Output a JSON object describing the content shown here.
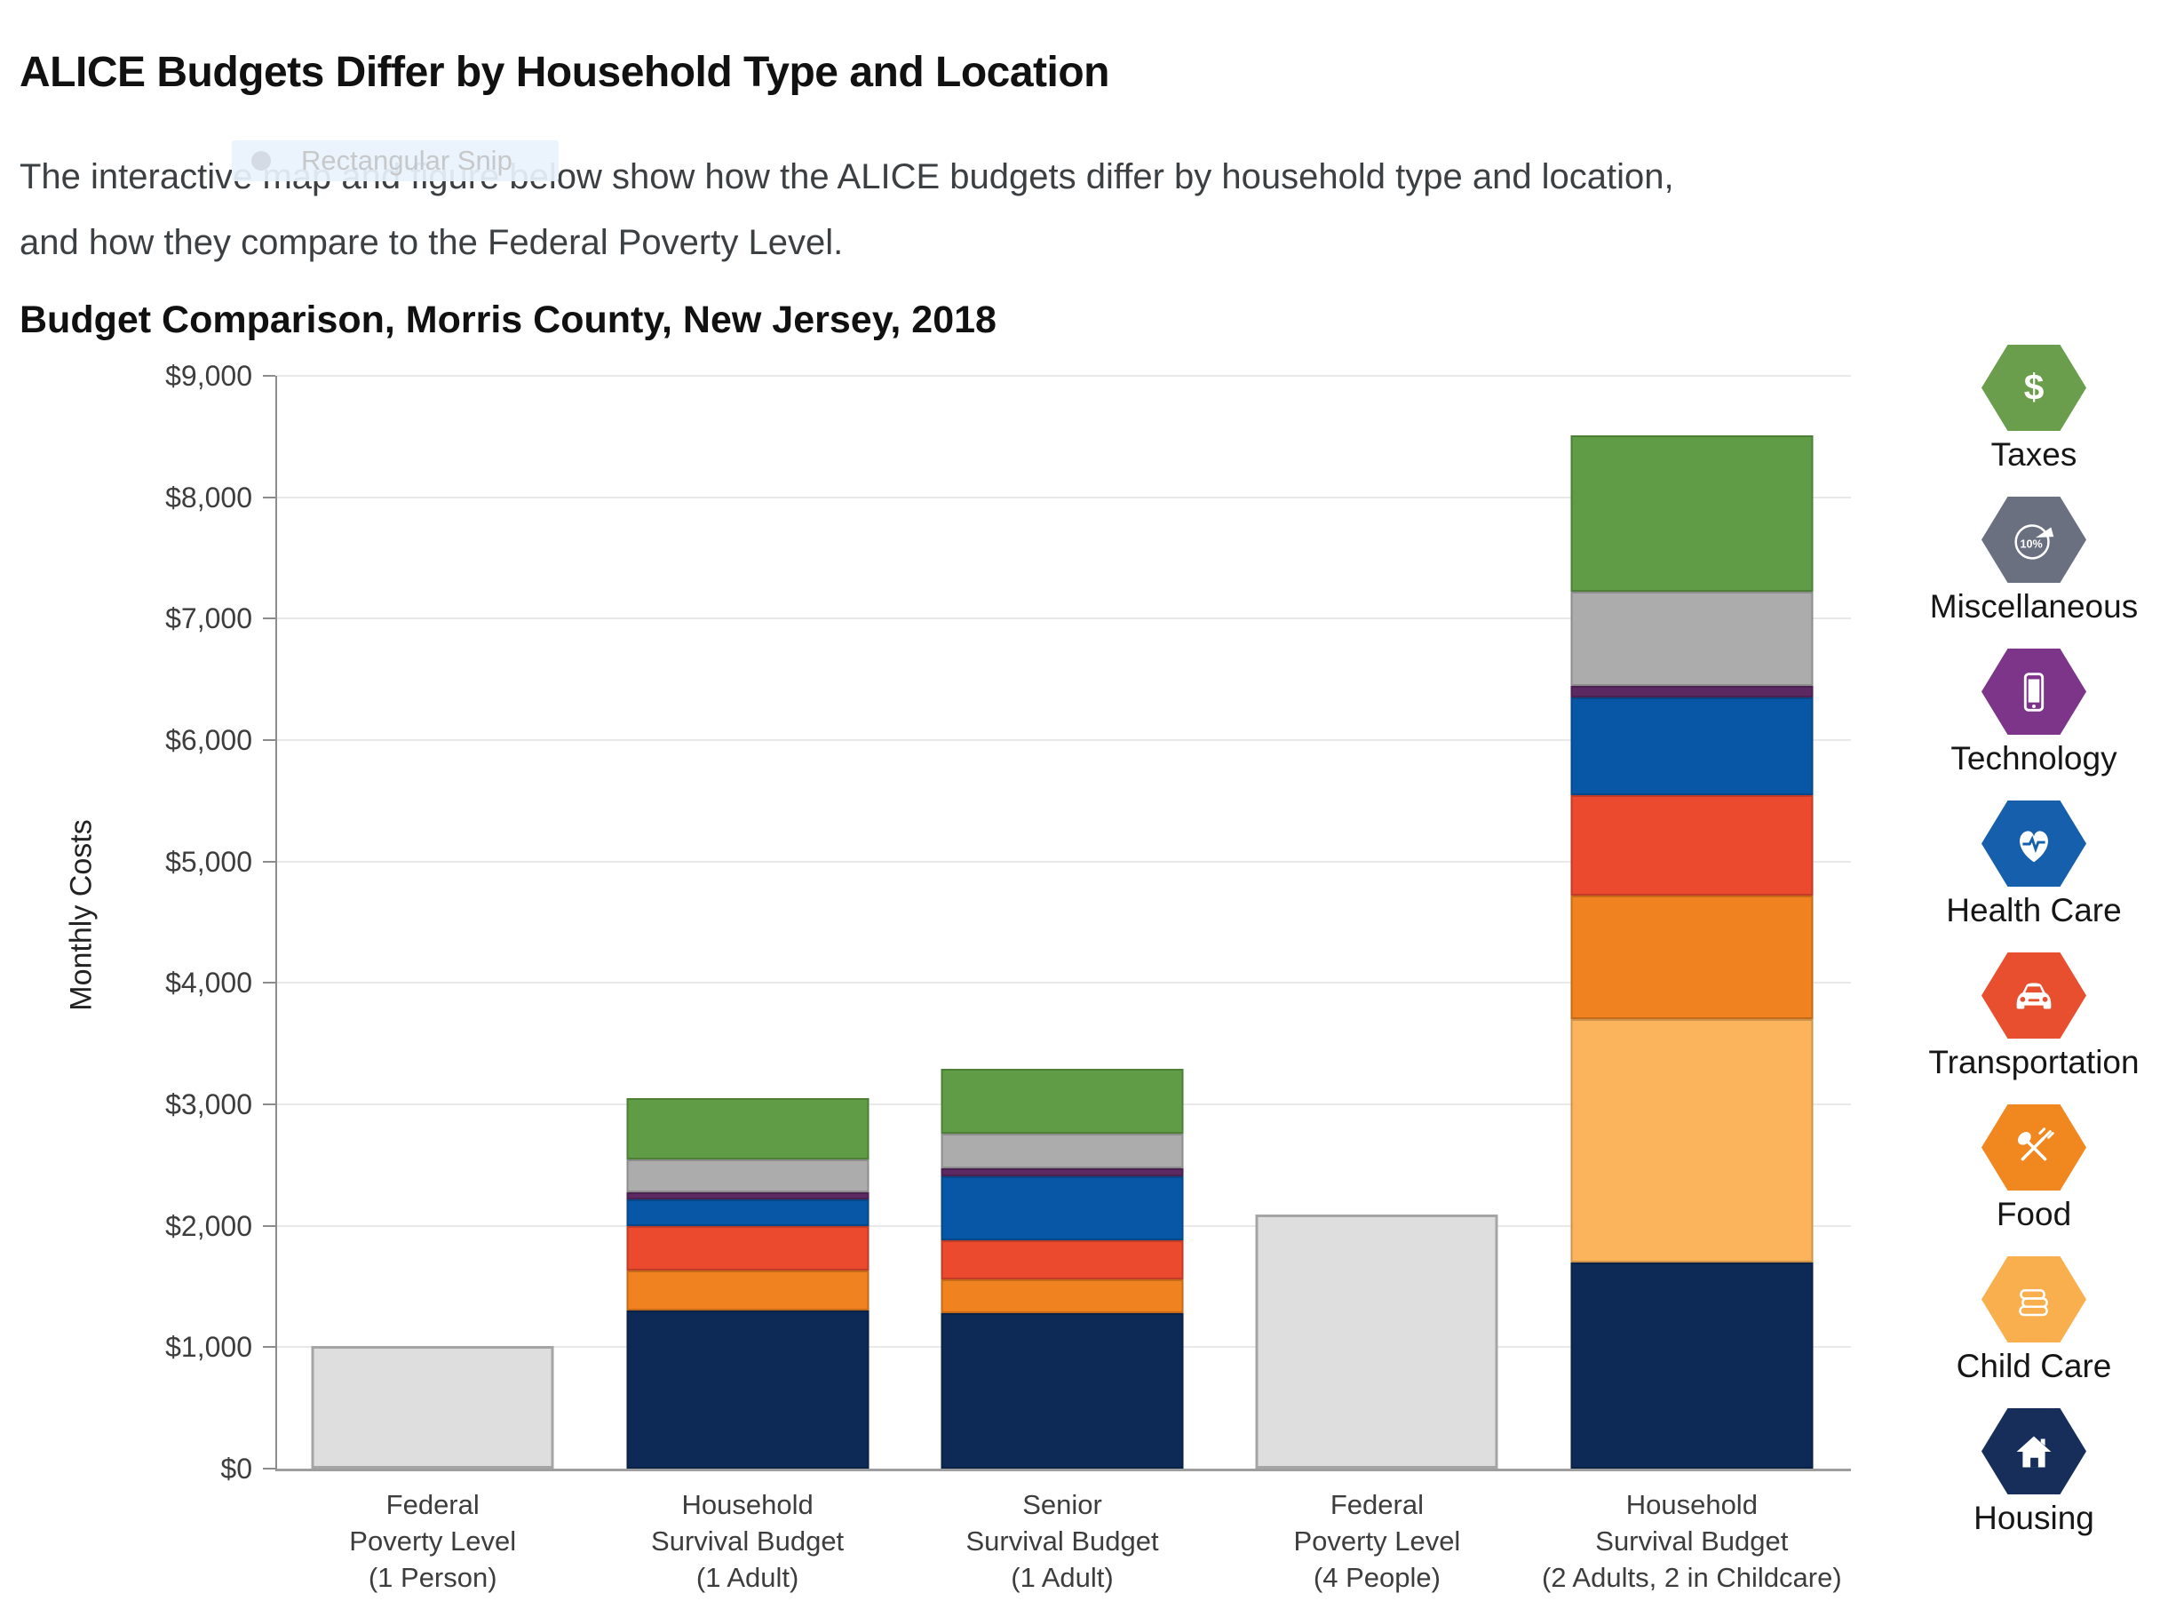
{
  "page": {
    "title": "ALICE Budgets Differ by Household Type and Location",
    "subtitle_line1": "The interactive map and figure below show how the ALICE budgets differ by household type and location,",
    "subtitle_line2": "and how they compare to the Federal Poverty Level.",
    "snip_tooltip": "Rectangular Snip"
  },
  "chart_data": {
    "type": "bar",
    "stacked": true,
    "title": "Budget Comparison, Morris County, New Jersey, 2018",
    "ylabel": "Monthly Costs",
    "xlabel": "",
    "ylim": [
      0,
      9000
    ],
    "y_tick_step": 1000,
    "y_tick_labels": [
      "$0",
      "$1,000",
      "$2,000",
      "$3,000",
      "$4,000",
      "$5,000",
      "$6,000",
      "$7,000",
      "$8,000",
      "$9,000"
    ],
    "grid": true,
    "legend_position": "right",
    "stack_order": [
      "housing",
      "childcare",
      "food",
      "transportation",
      "healthcare",
      "technology",
      "miscellaneous",
      "taxes"
    ],
    "series_colors": {
      "fpl": "#DEDEDE",
      "housing": "#0D2A56",
      "childcare": "#FBB45C",
      "food": "#F0821F",
      "transportation": "#EC4A2F",
      "healthcare": "#0857A6",
      "technology": "#5C2963",
      "miscellaneous": "#ACACAC",
      "taxes": "#609B45"
    },
    "categories": [
      {
        "label_lines": [
          "Federal",
          "Poverty Level",
          "(1 Person)"
        ],
        "total": 1010,
        "segments": {
          "fpl": 1010
        }
      },
      {
        "label_lines": [
          "Household",
          "Survival Budget",
          "(1 Adult)"
        ],
        "total": 3055,
        "segments": {
          "housing": 1300,
          "childcare": 0,
          "food": 330,
          "transportation": 370,
          "healthcare": 220,
          "technology": 55,
          "miscellaneous": 270,
          "taxes": 510
        }
      },
      {
        "label_lines": [
          "Senior",
          "Survival Budget",
          "(1 Adult)"
        ],
        "total": 3290,
        "segments": {
          "housing": 1280,
          "childcare": 0,
          "food": 280,
          "transportation": 320,
          "healthcare": 530,
          "technology": 60,
          "miscellaneous": 290,
          "taxes": 530
        }
      },
      {
        "label_lines": [
          "Federal",
          "Poverty Level",
          "(4 People)"
        ],
        "total": 2090,
        "segments": {
          "fpl": 2090
        }
      },
      {
        "label_lines": [
          "Household",
          "Survival Budget",
          "(2 Adults, 2 in Childcare)"
        ],
        "total": 8510,
        "segments": {
          "housing": 1700,
          "childcare": 2000,
          "food": 1020,
          "transportation": 830,
          "healthcare": 800,
          "technology": 100,
          "miscellaneous": 770,
          "taxes": 1290
        }
      }
    ]
  },
  "legend": {
    "items": [
      {
        "id": "taxes",
        "label": "Taxes",
        "color": "#6A9E4C"
      },
      {
        "id": "miscellaneous",
        "label": "Miscellaneous",
        "color": "#6B7080"
      },
      {
        "id": "technology",
        "label": "Technology",
        "color": "#7C3588"
      },
      {
        "id": "healthcare",
        "label": "Health Care",
        "color": "#155FAC"
      },
      {
        "id": "transportation",
        "label": "Transportation",
        "color": "#E84F2E"
      },
      {
        "id": "food",
        "label": "Food",
        "color": "#F1871F"
      },
      {
        "id": "childcare",
        "label": "Child Care",
        "color": "#F9AF4E"
      },
      {
        "id": "housing",
        "label": "Housing",
        "color": "#162E59"
      }
    ]
  }
}
